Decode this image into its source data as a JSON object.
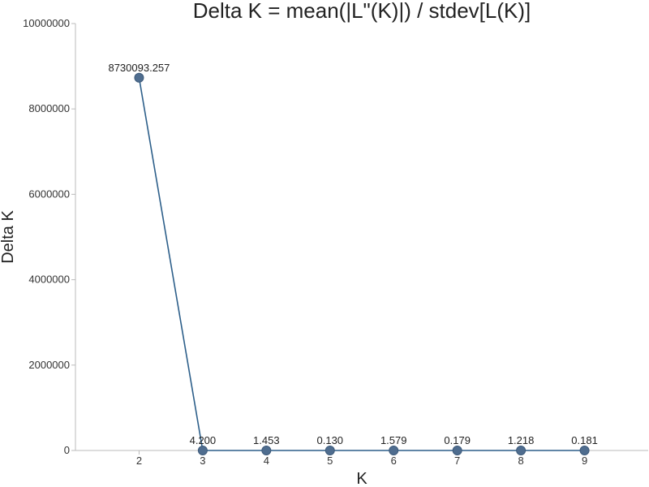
{
  "chart_data": {
    "type": "line",
    "title": "Delta K = mean(|L\"(K)|) / stdev[L(K)]",
    "xlabel": "K",
    "ylabel": "Delta K",
    "x": [
      2,
      3,
      4,
      5,
      6,
      7,
      8,
      9
    ],
    "x_tick_labels": [
      "2",
      "3",
      "4",
      "5",
      "6",
      "7",
      "8",
      "9"
    ],
    "series": [
      {
        "values": [
          8730093.257,
          4.2,
          1.453,
          0.13,
          1.579,
          0.179,
          1.218,
          0.181
        ],
        "data_labels": [
          "8730093.257",
          "4.200",
          "1.453",
          "0.130",
          "1.579",
          "0.179",
          "1.218",
          "0.181"
        ],
        "color": "#4f6d8f",
        "line_color": "#2d5f8a"
      }
    ],
    "xlim": [
      1,
      10
    ],
    "ylim": [
      0,
      10000000
    ],
    "y_ticks": [
      0,
      2000000,
      4000000,
      6000000,
      8000000,
      10000000
    ],
    "y_tick_labels": [
      "0",
      "2000000",
      "4000000",
      "6000000",
      "8000000",
      "10000000"
    ],
    "grid": false,
    "legend": "none",
    "axis_color": "#bbbbbb"
  }
}
